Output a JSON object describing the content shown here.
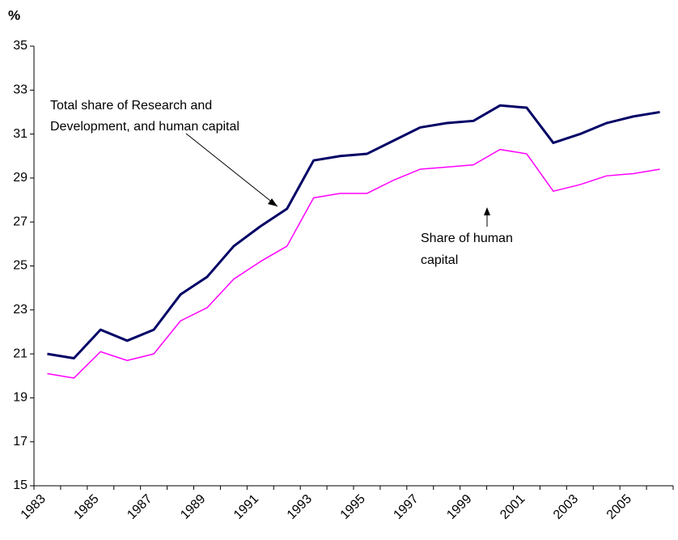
{
  "chart_data": {
    "type": "line",
    "y_label": "%",
    "categories": [
      "1983",
      null,
      "1985",
      null,
      "1987",
      null,
      "1989",
      null,
      "1991",
      null,
      "1993",
      null,
      "1995",
      null,
      "1997",
      null,
      "1999",
      null,
      "2001",
      null,
      "2003",
      null,
      "2005",
      null
    ],
    "series": [
      {
        "color": "#000066",
        "values": [
          21.0,
          20.8,
          22.1,
          21.6,
          22.1,
          23.7,
          24.5,
          25.9,
          26.8,
          27.6,
          29.8,
          30.0,
          30.1,
          30.7,
          31.3,
          31.5,
          31.6,
          32.3,
          32.2,
          30.6,
          31.0,
          31.5,
          31.8,
          32.0
        ]
      },
      {
        "color": "#ff00ff",
        "values": [
          20.1,
          19.9,
          21.1,
          20.7,
          21.0,
          22.5,
          23.1,
          24.4,
          25.2,
          25.9,
          28.1,
          28.3,
          28.3,
          28.9,
          29.4,
          29.5,
          29.6,
          30.3,
          30.1,
          28.4,
          28.7,
          29.1,
          29.2,
          29.4
        ]
      }
    ],
    "annotations": [
      {
        "lines": [
          "Total share of Research and",
          "Development, and human capital"
        ]
      },
      {
        "lines": [
          "Share of human",
          "capital"
        ]
      }
    ],
    "ylim": [
      15,
      35
    ],
    "yticks": [
      15,
      17,
      19,
      21,
      23,
      25,
      27,
      29,
      31,
      33,
      35
    ],
    "grid": false
  }
}
